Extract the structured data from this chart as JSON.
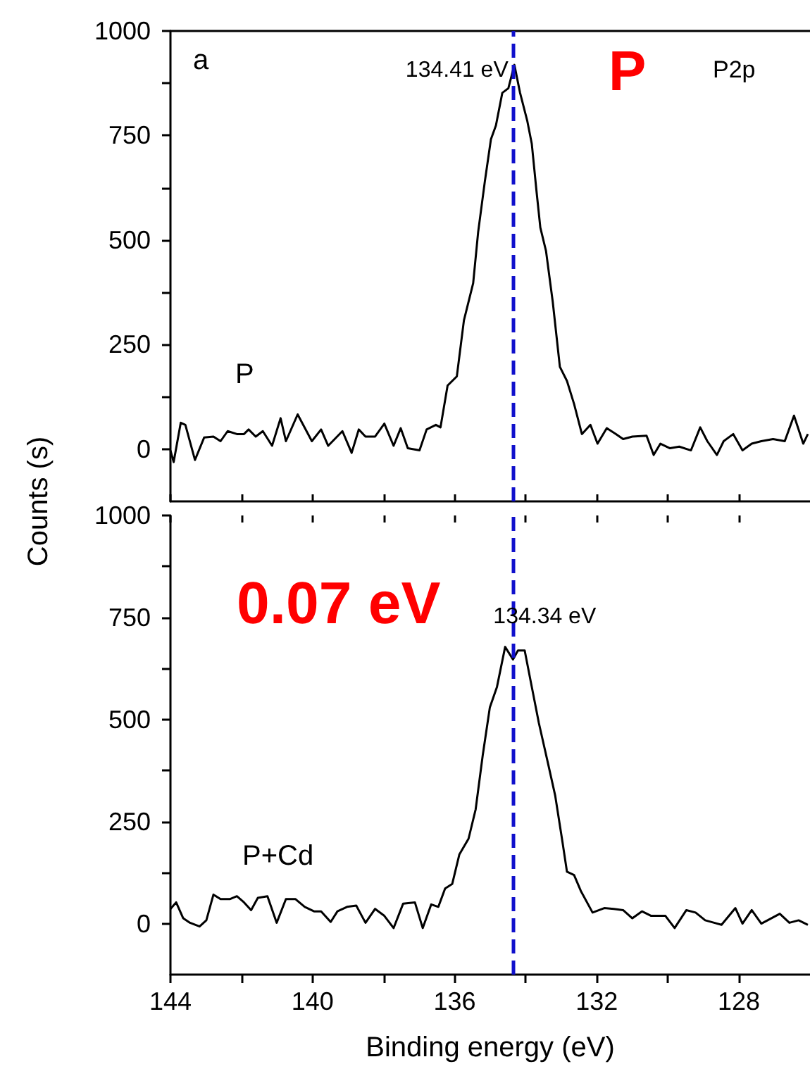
{
  "chart_data": [
    {
      "type": "line",
      "ylabel": "Counts (s)",
      "xlim": [
        144,
        126
      ],
      "ylim": [
        -125,
        1000
      ],
      "xticks": [
        {
          "value": 144,
          "label": null
        },
        {
          "value": 142,
          "label": null
        },
        {
          "value": 140,
          "label": null
        },
        {
          "value": 138,
          "label": null
        },
        {
          "value": 136,
          "label": null
        },
        {
          "value": 134,
          "label": null
        },
        {
          "value": 132,
          "label": null
        },
        {
          "value": 130,
          "label": null
        },
        {
          "value": 128,
          "label": null
        }
      ],
      "yticks": [
        0,
        {
          "value": 125,
          "label": null
        },
        250,
        {
          "value": 375,
          "label": null
        },
        500,
        {
          "value": 625,
          "label": null
        },
        750,
        {
          "value": 875,
          "label": null
        },
        1000
      ],
      "tick_labels": "y",
      "grid": false,
      "legend": false,
      "marker": "none",
      "line_style": "solid",
      "series": [
        {
          "name": "P",
          "color": "#000000",
          "x": [
            144.0,
            143.91,
            143.71,
            143.58,
            143.31,
            143.05,
            142.79,
            142.59,
            142.39,
            142.13,
            141.93,
            141.8,
            141.6,
            141.4,
            141.14,
            140.9,
            140.75,
            140.42,
            140.02,
            139.76,
            139.56,
            139.16,
            138.9,
            138.7,
            138.51,
            138.24,
            137.98,
            137.72,
            137.52,
            137.32,
            136.99,
            136.79,
            136.53,
            136.4,
            136.2,
            135.94,
            135.74,
            135.48,
            135.34,
            135.15,
            134.98,
            134.84,
            134.66,
            134.49,
            134.32,
            134.16,
            133.96,
            133.83,
            133.7,
            133.59,
            133.43,
            133.24,
            133.04,
            132.84,
            132.64,
            132.42,
            132.18,
            131.98,
            131.72,
            131.46,
            131.26,
            131.0,
            130.6,
            130.4,
            130.21,
            129.94,
            129.68,
            129.35,
            129.09,
            128.89,
            128.62,
            128.43,
            128.16,
            127.9,
            127.64,
            127.37,
            127.04,
            126.71,
            126.45,
            126.19,
            126.06
          ],
          "values": [
            -3,
            -31,
            63,
            58,
            -26,
            28,
            30,
            19,
            43,
            36,
            36,
            47,
            30,
            43,
            8,
            74,
            19,
            83,
            19,
            47,
            8,
            43,
            -9,
            47,
            30,
            30,
            61,
            8,
            50,
            2,
            -3,
            47,
            58,
            52,
            152,
            174,
            308,
            397,
            519,
            641,
            741,
            774,
            852,
            863,
            919,
            852,
            786,
            730,
            619,
            530,
            474,
            352,
            197,
            163,
            108,
            36,
            58,
            13,
            50,
            36,
            24,
            30,
            32,
            -14,
            13,
            2,
            6,
            -3,
            52,
            19,
            -14,
            19,
            36,
            -3,
            13,
            19,
            24,
            19,
            80,
            13,
            36
          ]
        }
      ],
      "ref_lines": [
        {
          "axis": "x",
          "value": 134.34,
          "color": "#1010cc",
          "line_style": "dashed"
        }
      ],
      "annotations": [
        "a",
        {
          "text": "134.41 eV",
          "x": 134.41,
          "y": 919
        },
        "P",
        "P2p"
      ]
    },
    {
      "type": "line",
      "xlabel": "Binding energy (eV)",
      "xlim": [
        144,
        126
      ],
      "ylim": [
        -125,
        1000
      ],
      "xticks": [
        144,
        {
          "value": 142,
          "label": null
        },
        140,
        {
          "value": 138,
          "label": null
        },
        136,
        {
          "value": 134,
          "label": null
        },
        132,
        {
          "value": 130,
          "label": null
        },
        128
      ],
      "yticks": [
        0,
        {
          "value": 125,
          "label": null
        },
        250,
        {
          "value": 375,
          "label": null
        },
        500,
        {
          "value": 625,
          "label": null
        },
        750,
        {
          "value": 875,
          "label": null
        },
        1000
      ],
      "grid": false,
      "legend": false,
      "marker": "none",
      "line_style": "solid",
      "series": [
        {
          "name": "P+Cd",
          "color": "#000000",
          "x": [
            144.0,
            143.84,
            143.64,
            143.45,
            143.18,
            142.99,
            142.79,
            142.59,
            142.33,
            142.13,
            141.93,
            141.73,
            141.54,
            141.27,
            141.01,
            140.75,
            140.48,
            140.22,
            139.96,
            139.76,
            139.49,
            139.3,
            139.03,
            138.77,
            138.51,
            138.24,
            137.98,
            137.72,
            137.45,
            137.12,
            136.9,
            136.66,
            136.46,
            136.27,
            136.07,
            135.87,
            135.61,
            135.41,
            135.21,
            135.01,
            134.81,
            134.58,
            134.36,
            134.22,
            134.03,
            133.83,
            133.63,
            133.37,
            133.17,
            132.97,
            132.84,
            132.64,
            132.45,
            132.12,
            131.79,
            131.52,
            131.26,
            131.0,
            130.73,
            130.47,
            130.07,
            129.81,
            129.48,
            129.22,
            128.95,
            128.49,
            128.1,
            127.9,
            127.64,
            127.37,
            126.85,
            126.58,
            126.32,
            126.06
          ],
          "values": [
            36,
            52,
            13,
            2,
            -7,
            8,
            71,
            60,
            60,
            67,
            52,
            33,
            63,
            67,
            2,
            60,
            60,
            41,
            30,
            30,
            4,
            30,
            41,
            44,
            2,
            36,
            19,
            -11,
            49,
            52,
            -11,
            47,
            41,
            86,
            97,
            169,
            208,
            280,
            413,
            530,
            580,
            678,
            647,
            669,
            669,
            580,
            491,
            391,
            313,
            202,
            127,
            119,
            80,
            27,
            38,
            36,
            33,
            13,
            30,
            19,
            19,
            -11,
            33,
            27,
            8,
            -3,
            38,
            0,
            33,
            0,
            24,
            2,
            8,
            -3
          ]
        }
      ],
      "ref_lines": [
        {
          "axis": "x",
          "value": 134.34,
          "color": "#1010cc",
          "line_style": "dashed"
        }
      ],
      "annotations": [
        "0.07 eV",
        {
          "text": "134.34 eV",
          "x": 134.34,
          "y": 669
        }
      ]
    }
  ]
}
